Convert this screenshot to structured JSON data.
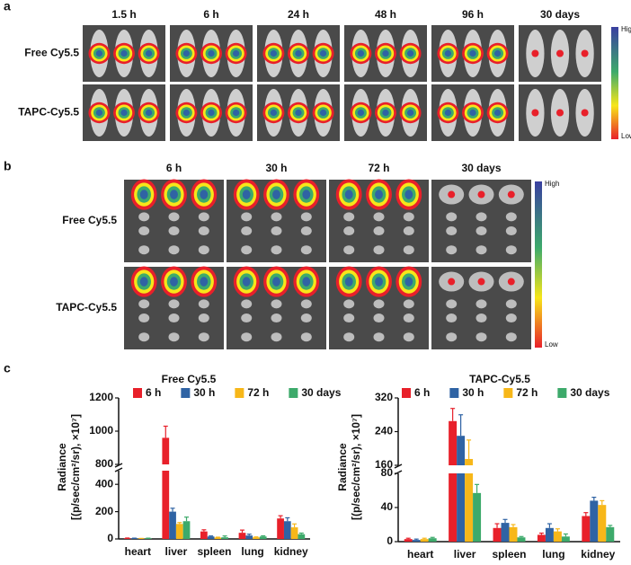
{
  "panel_a": {
    "label": "a",
    "times": [
      "1.5 h",
      "6 h",
      "24 h",
      "48 h",
      "96 h",
      "30 days"
    ],
    "rows": [
      "Free Cy5.5",
      "TAPC-Cy5.5"
    ],
    "scale": {
      "high": "High",
      "low": "Low"
    }
  },
  "panel_b": {
    "label": "b",
    "times": [
      "6 h",
      "30 h",
      "72 h",
      "30 days"
    ],
    "rows": [
      "Free Cy5.5",
      "TAPC-Cy5.5"
    ],
    "scale": {
      "high": "High",
      "low": "Low"
    }
  },
  "panel_c": {
    "label": "c"
  },
  "chart_data": [
    {
      "type": "bar",
      "title": "Free Cy5.5",
      "ylabel": "Radiance",
      "ylabel_unit": "[(p/sec/cm²/sr), ×10⁷]",
      "categories": [
        "heart",
        "liver",
        "spleen",
        "lung",
        "kidney"
      ],
      "series": [
        {
          "name": "6 h",
          "color": "#e8202a",
          "values": [
            5,
            960,
            55,
            45,
            150
          ],
          "errors": [
            2,
            70,
            12,
            20,
            20
          ]
        },
        {
          "name": "30 h",
          "color": "#2f63a4",
          "values": [
            4,
            200,
            18,
            25,
            130
          ],
          "errors": [
            2,
            25,
            4,
            10,
            25
          ]
        },
        {
          "name": "72 h",
          "color": "#f7b719",
          "values": [
            3,
            110,
            10,
            12,
            85
          ],
          "errors": [
            1,
            10,
            3,
            3,
            25
          ]
        },
        {
          "name": "30 days",
          "color": "#3daa6b",
          "values": [
            4,
            130,
            12,
            18,
            35
          ],
          "errors": [
            2,
            30,
            10,
            5,
            8
          ]
        }
      ],
      "ylim": [
        0,
        1200
      ],
      "ybreak": [
        500,
        800
      ],
      "yticks": [
        0,
        200,
        400,
        800,
        1000,
        1200
      ]
    },
    {
      "type": "bar",
      "title": "TAPC-Cy5.5",
      "ylabel": "Radiance",
      "ylabel_unit": "[(p/sec/cm²/sr), ×10⁷]",
      "categories": [
        "heart",
        "liver",
        "spleen",
        "lung",
        "kidney"
      ],
      "series": [
        {
          "name": "6 h",
          "color": "#e8202a",
          "values": [
            3,
            265,
            16,
            8,
            30
          ],
          "errors": [
            1,
            30,
            5,
            2,
            4
          ]
        },
        {
          "name": "30 h",
          "color": "#2f63a4",
          "values": [
            2,
            230,
            22,
            16,
            48
          ],
          "errors": [
            1,
            50,
            4,
            5,
            4
          ]
        },
        {
          "name": "72 h",
          "color": "#f7b719",
          "values": [
            3,
            175,
            17,
            12,
            43
          ],
          "errors": [
            1,
            45,
            3,
            3,
            5
          ]
        },
        {
          "name": "30 days",
          "color": "#3daa6b",
          "values": [
            4,
            57,
            5,
            6,
            17
          ],
          "errors": [
            1,
            10,
            1,
            3,
            2
          ]
        }
      ],
      "ylim": [
        0,
        320
      ],
      "ybreak": [
        80,
        160
      ],
      "yticks": [
        0,
        40,
        80,
        160,
        240,
        320
      ]
    }
  ]
}
